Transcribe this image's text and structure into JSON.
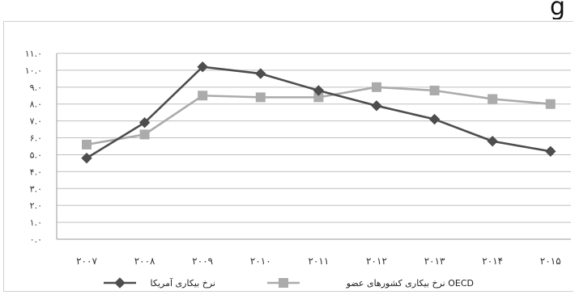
{
  "top_fragment": "g",
  "chart_data": {
    "type": "line",
    "x": [
      "۲۰۰۷",
      "۲۰۰۸",
      "۲۰۰۹",
      "۲۰۱۰",
      "۲۰۱۱",
      "۲۰۱۲",
      "۲۰۱۳",
      "۲۰۱۴",
      "۲۰۱۵"
    ],
    "series": [
      {
        "name": "نرخ بیکاری آمریکا",
        "color": "#4d4d4d",
        "marker": "diamond",
        "values": [
          4.8,
          6.9,
          10.2,
          9.8,
          8.8,
          7.9,
          7.1,
          5.8,
          5.2
        ]
      },
      {
        "name": "نرخ بیکاری کشورهای عضو OECD",
        "color": "#ababab",
        "marker": "square",
        "values": [
          5.6,
          6.2,
          8.5,
          8.4,
          8.4,
          9.0,
          8.8,
          8.3,
          8.0
        ]
      }
    ],
    "y_ticks": [
      "۰.۰",
      "۱.۰",
      "۲.۰",
      "۳.۰",
      "۴.۰",
      "۵.۰",
      "۶.۰",
      "۷.۰",
      "۸.۰",
      "۹.۰",
      "۱۰.۰",
      "۱۱.۰"
    ],
    "ylim": [
      0,
      11
    ],
    "grid": true,
    "legend_position": "bottom"
  }
}
